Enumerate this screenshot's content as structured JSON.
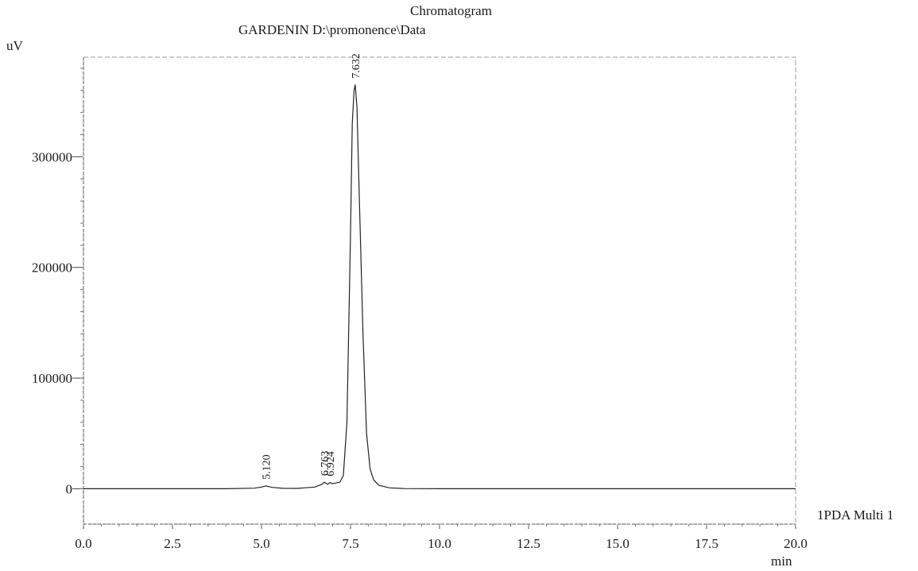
{
  "chart_data": {
    "type": "line",
    "title": "Chromatogram",
    "subtitle": "GARDENIN D:\\promonence\\Data",
    "ylabel": "uV",
    "xlabel": "min",
    "series_label": "1PDA Multi 1",
    "xlim": [
      0,
      20
    ],
    "ylim": [
      -32000,
      390000
    ],
    "x_ticks": [
      "0.0",
      "2.5",
      "5.0",
      "7.5",
      "10.0",
      "12.5",
      "15.0",
      "17.5",
      "20.0"
    ],
    "y_ticks": [
      {
        "value": 0,
        "label": "0"
      },
      {
        "value": 100000,
        "label": "100000"
      },
      {
        "value": 200000,
        "label": "200000"
      },
      {
        "value": 300000,
        "label": "300000"
      }
    ],
    "grid": false,
    "series": [
      {
        "x": [
          0.0,
          1.0,
          2.0,
          3.0,
          4.0,
          4.8,
          5.0,
          5.12,
          5.3,
          5.6,
          6.0,
          6.5,
          6.7,
          6.763,
          6.85,
          6.924,
          7.0,
          7.2,
          7.3,
          7.4,
          7.5,
          7.55,
          7.6,
          7.632,
          7.68,
          7.75,
          7.85,
          7.95,
          8.05,
          8.15,
          8.3,
          8.6,
          9.0,
          10.0,
          12.0,
          14.0,
          16.0,
          18.0,
          20.0
        ],
        "y": [
          0,
          0,
          0,
          0,
          0,
          500,
          1500,
          2500,
          1200,
          400,
          300,
          1500,
          4000,
          6000,
          4000,
          5500,
          4500,
          6000,
          12000,
          60000,
          230000,
          330000,
          360000,
          365000,
          345000,
          260000,
          140000,
          50000,
          18000,
          8000,
          3000,
          800,
          200,
          0,
          0,
          0,
          0,
          0,
          0
        ]
      }
    ],
    "peaks": [
      {
        "time": 5.12,
        "label": "5.120"
      },
      {
        "time": 6.763,
        "label": "6.763"
      },
      {
        "time": 6.924,
        "label": "6.924"
      },
      {
        "time": 7.632,
        "label": "7.632"
      }
    ]
  }
}
